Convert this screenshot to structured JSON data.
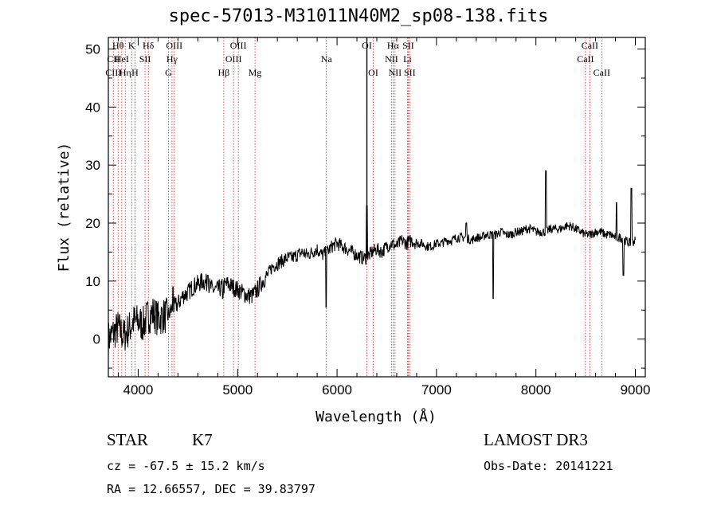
{
  "chart_data": {
    "type": "line",
    "title": "spec-57013-M31011N40M2_sp08-138.fits",
    "xlabel": "Wavelength (Å)",
    "ylabel": "Flux (relative)",
    "xlim": [
      3700,
      9100
    ],
    "ylim": [
      -6.5,
      52
    ],
    "x_ticks": [
      4000,
      5000,
      6000,
      7000,
      8000,
      9000
    ],
    "x_tick_labels": [
      "4000",
      "5000",
      "6000",
      "7000",
      "8000",
      "9000"
    ],
    "y_ticks": [
      0,
      10,
      20,
      30,
      40,
      50
    ],
    "y_tick_labels": [
      "0",
      "10",
      "20",
      "30",
      "40",
      "50"
    ],
    "grid": false,
    "series": [
      {
        "name": "flux",
        "color": "#000000",
        "x": [
          3700,
          3750,
          3800,
          3850,
          3900,
          3950,
          4000,
          4050,
          4100,
          4150,
          4200,
          4250,
          4300,
          4350,
          4400,
          4450,
          4500,
          4550,
          4600,
          4650,
          4700,
          4750,
          4800,
          4850,
          4900,
          4950,
          5000,
          5050,
          5100,
          5150,
          5200,
          5250,
          5300,
          5350,
          5400,
          5450,
          5500,
          5550,
          5600,
          5650,
          5700,
          5750,
          5800,
          5850,
          5900,
          5950,
          6000,
          6050,
          6100,
          6150,
          6200,
          6250,
          6300,
          6350,
          6400,
          6450,
          6500,
          6550,
          6600,
          6650,
          6700,
          6750,
          6800,
          6850,
          6900,
          6950,
          7000,
          7050,
          7100,
          7150,
          7200,
          7250,
          7300,
          7350,
          7400,
          7450,
          7500,
          7550,
          7600,
          7650,
          7700,
          7750,
          7800,
          7850,
          7900,
          7950,
          8000,
          8050,
          8100,
          8150,
          8200,
          8250,
          8300,
          8350,
          8400,
          8450,
          8500,
          8550,
          8600,
          8650,
          8700,
          8750,
          8800,
          8850,
          8900,
          8950,
          9000
        ],
        "y": [
          0,
          1,
          2,
          0.5,
          1.5,
          3,
          3,
          2.5,
          4,
          4.5,
          3.5,
          4,
          4,
          5.5,
          6,
          7.5,
          8,
          9,
          9.5,
          10,
          9.5,
          8.5,
          8.5,
          9,
          9.5,
          9,
          8.5,
          8,
          7.5,
          7.5,
          8.5,
          10,
          11,
          12.5,
          13,
          13.5,
          14,
          14,
          14.5,
          15,
          14.5,
          15,
          15.5,
          14.5,
          15,
          16,
          16.5,
          16,
          15.5,
          15,
          14.5,
          14,
          14,
          15,
          15.5,
          15,
          16,
          16.5,
          16,
          17,
          16.5,
          17,
          16.5,
          16.5,
          16,
          16,
          16.5,
          16.5,
          17,
          17,
          17.5,
          17.5,
          17.5,
          17,
          17.5,
          17.5,
          18,
          18,
          18,
          18.5,
          18,
          18,
          18.5,
          18.5,
          19,
          19,
          18.5,
          18.5,
          18.5,
          19,
          19,
          19,
          19.5,
          19.5,
          19,
          18.5,
          18,
          18,
          18.5,
          18.5,
          18,
          18,
          17.5,
          17.5,
          17,
          16.5,
          17
        ]
      }
    ],
    "features": [
      {
        "x": 7570,
        "y": 7
      },
      {
        "x": 5890,
        "y": 5.5
      },
      {
        "x": 4850,
        "y": 7
      },
      {
        "x": 8810,
        "y": 23.5
      },
      {
        "x": 8960,
        "y": 26
      },
      {
        "x": 8880,
        "y": 11
      },
      {
        "x": 8100,
        "y": 29
      },
      {
        "x": 4350,
        "y": 9
      },
      {
        "x": 4700,
        "y": 11
      },
      {
        "x": 7300,
        "y": 20
      },
      {
        "x": 6300,
        "y": 23
      }
    ],
    "emission_spike": {
      "x": 6300,
      "y": 52
    },
    "line_markers": [
      {
        "label": "Hθ",
        "x": 3798,
        "row": 0
      },
      {
        "label": "CII",
        "x": 3750,
        "row": 1
      },
      {
        "label": "CIII",
        "x": 3750,
        "row": 2
      },
      {
        "label": "K",
        "x": 3934,
        "row": 0
      },
      {
        "label": "HeI",
        "x": 3835,
        "row": 1
      },
      {
        "label": "Hη",
        "x": 3870,
        "row": 2
      },
      {
        "label": "Hδ",
        "x": 4102,
        "row": 0
      },
      {
        "label": "SII",
        "x": 4069,
        "row": 1
      },
      {
        "label": "H",
        "x": 3968,
        "row": 2
      },
      {
        "label": "OIII",
        "x": 4363,
        "row": 0
      },
      {
        "label": "Hγ",
        "x": 4340,
        "row": 1
      },
      {
        "label": "G",
        "x": 4305,
        "row": 2
      },
      {
        "label": "OIII",
        "x": 5007,
        "row": 0
      },
      {
        "label": "OIII",
        "x": 4959,
        "row": 1
      },
      {
        "label": "Hβ",
        "x": 4861,
        "row": 2
      },
      {
        "label": "Mg",
        "x": 5175,
        "row": 2
      },
      {
        "label": "Na",
        "x": 5893,
        "row": 1
      },
      {
        "label": "OI",
        "x": 6300,
        "row": 0
      },
      {
        "label": "OI",
        "x": 6364,
        "row": 2
      },
      {
        "label": "Hα",
        "x": 6563,
        "row": 0
      },
      {
        "label": "SII",
        "x": 6716,
        "row": 0
      },
      {
        "label": "NII",
        "x": 6548,
        "row": 1
      },
      {
        "label": "Li",
        "x": 6708,
        "row": 1
      },
      {
        "label": "NII",
        "x": 6583,
        "row": 2
      },
      {
        "label": "SII",
        "x": 6731,
        "row": 2
      },
      {
        "label": "CaII",
        "x": 8542,
        "row": 0
      },
      {
        "label": "CaII",
        "x": 8498,
        "row": 1
      },
      {
        "label": "CaII",
        "x": 8662,
        "row": 2
      }
    ],
    "marker_color": "#cc2222"
  },
  "info": {
    "object_class": "STAR",
    "subclass": "K7",
    "redshift": "cz = -67.5 ± 15.2 km/s",
    "coords": "RA =  12.66557, DEC =  39.83797",
    "survey": "LAMOST DR3",
    "obs_date": "Obs-Date: 20141221"
  }
}
